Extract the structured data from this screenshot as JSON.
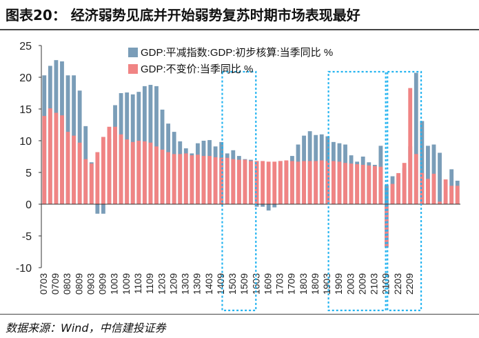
{
  "title": "图表20： 经济弱势见底并开始弱势复苏时期市场表现最好",
  "source": "数据来源：Wind，中信建投证券",
  "chart_data": {
    "type": "bar",
    "ylim": [
      -10,
      25
    ],
    "yticks": [
      25,
      20,
      15,
      10,
      5,
      0,
      -5,
      -10
    ],
    "grid": false,
    "legend_position": "top-center",
    "series": [
      {
        "name": "GDP:平减指数:GDP:初步核算:当季同比 %",
        "color": "#7a9db8",
        "values": [
          20.3,
          21.8,
          22.7,
          22.5,
          20.3,
          20.3,
          17.9,
          12.3,
          6.6,
          -1.5,
          -1.5,
          10.3,
          15.6,
          17.5,
          17.6,
          17.3,
          17.7,
          18.6,
          18.8,
          18.6,
          14.9,
          12.7,
          11.4,
          9.9,
          8.8,
          8.0,
          9.6,
          10.0,
          10.1,
          9.1,
          9.8,
          8.0,
          8.5,
          7.6,
          7.1,
          7.0,
          -0.4,
          -0.4,
          -1.0,
          -0.5,
          6.8,
          6.8,
          7.6,
          9.4,
          10.8,
          11.5,
          10.9,
          11.0,
          10.7,
          9.8,
          9.6,
          9.4,
          7.7,
          6.7,
          7.5,
          6.6,
          6.2,
          9.2,
          3.0,
          4.4,
          4.6,
          5.7,
          9.1,
          20.7,
          13.1,
          9.2,
          9.4,
          8.1,
          0.6,
          5.5,
          3.7
        ]
      },
      {
        "name": "GDP:不变价:当季同比 %",
        "color": "#f08484",
        "values": [
          13.9,
          15.1,
          14.4,
          14.0,
          11.4,
          10.8,
          9.7,
          7.1,
          6.4,
          8.2,
          10.6,
          12.2,
          12.2,
          11.0,
          10.2,
          9.8,
          10.0,
          9.9,
          9.7,
          9.1,
          8.6,
          8.2,
          7.9,
          7.9,
          8.0,
          7.7,
          7.8,
          7.6,
          7.6,
          7.4,
          7.3,
          7.3,
          7.1,
          7.0,
          7.0,
          6.8,
          6.8,
          6.8,
          6.7,
          6.7,
          6.8,
          6.9,
          6.8,
          6.7,
          6.8,
          6.8,
          6.8,
          6.9,
          6.8,
          6.8,
          6.7,
          6.5,
          6.4,
          6.3,
          6.2,
          6.1,
          6.0,
          5.9,
          -6.8,
          3.2,
          4.9,
          6.5,
          18.3,
          7.9,
          4.9,
          4.0,
          4.8,
          0.4,
          3.9,
          2.9,
          2.9
        ]
      }
    ],
    "category_labels": [
      {
        "label": "0703",
        "index": 0
      },
      {
        "label": "0709",
        "index": 2
      },
      {
        "label": "0803",
        "index": 4
      },
      {
        "label": "0809",
        "index": 6
      },
      {
        "label": "0903",
        "index": 8
      },
      {
        "label": "0909",
        "index": 10
      },
      {
        "label": "1003",
        "index": 12
      },
      {
        "label": "1009",
        "index": 14
      },
      {
        "label": "1103",
        "index": 16
      },
      {
        "label": "1109",
        "index": 18
      },
      {
        "label": "1203",
        "index": 20
      },
      {
        "label": "1209",
        "index": 22
      },
      {
        "label": "1303",
        "index": 24
      },
      {
        "label": "1309",
        "index": 26
      },
      {
        "label": "1403",
        "index": 28
      },
      {
        "label": "1409",
        "index": 30
      },
      {
        "label": "1503",
        "index": 32
      },
      {
        "label": "1509",
        "index": 34
      },
      {
        "label": "1603",
        "index": 36
      },
      {
        "label": "1609",
        "index": 38
      },
      {
        "label": "1703",
        "index": 40
      },
      {
        "label": "1709",
        "index": 42
      },
      {
        "label": "1803",
        "index": 44
      },
      {
        "label": "1809",
        "index": 46
      },
      {
        "label": "1903",
        "index": 48
      },
      {
        "label": "1909",
        "index": 50
      },
      {
        "label": "2003",
        "index": 52
      },
      {
        "label": "2009",
        "index": 54
      },
      {
        "label": "2103",
        "index": 56
      },
      {
        "label": "2109",
        "index": 58
      },
      {
        "label": "2203",
        "index": 60
      },
      {
        "label": "2209",
        "index": 62
      }
    ],
    "highlight_periods": [
      {
        "from_index": 31,
        "to_index": 35
      },
      {
        "from_index": 49,
        "to_index": 57
      },
      {
        "from_index": 59,
        "to_index": 63
      }
    ]
  }
}
